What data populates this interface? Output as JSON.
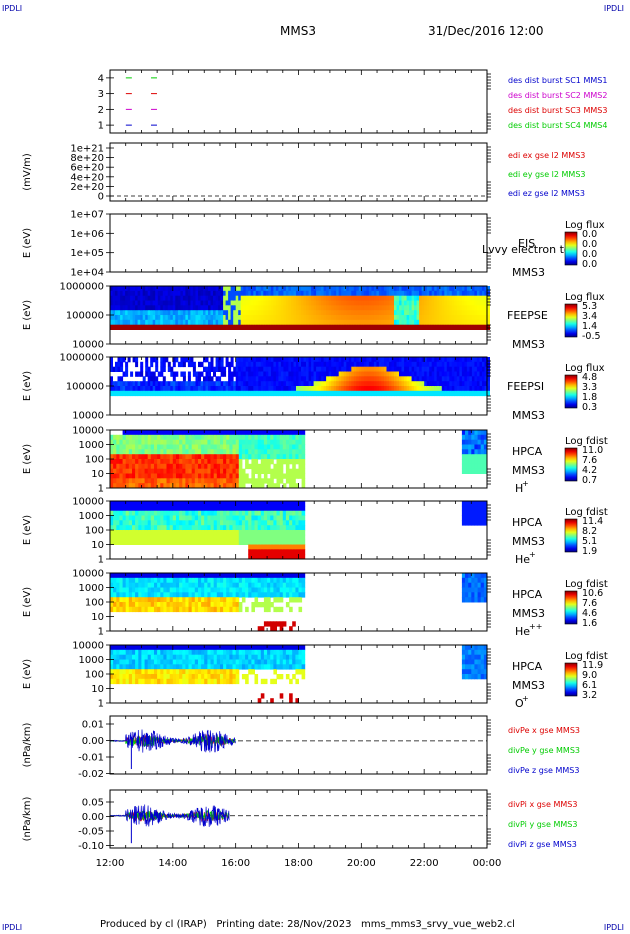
{
  "corners": {
    "top_left": "IPDLI",
    "top_right": "IPDLI",
    "bottom_left": "IPDLI",
    "bottom_right": "IPDLI"
  },
  "header": {
    "spacecraft": "MMS3",
    "date": "31/Dec/2016 12:00"
  },
  "footer": "Produced by cl (IRAP)   Printing date: 28/Nov/2023   mms_mms3_srvy_vue_web2.cl",
  "chart_data": {
    "type": "heatmap",
    "x_range_hours": [
      12,
      24
    ],
    "x_ticks": [
      "12:00",
      "14:00",
      "16:00",
      "18:00",
      "20:00",
      "22:00",
      "00:00"
    ],
    "panels": [
      {
        "id": "burst",
        "type": "scatter",
        "ylabel": "",
        "yticks": [
          "4",
          "3",
          "2",
          "1"
        ],
        "marks": [
          {
            "y": 4,
            "x": [
              12.6,
              13.4
            ],
            "color": "#00cc00"
          },
          {
            "y": 3,
            "x": [
              12.6,
              13.4
            ],
            "color": "#dd0000"
          },
          {
            "y": 2,
            "x": [
              12.6,
              13.4
            ],
            "color": "#cc00cc"
          },
          {
            "y": 1,
            "x": [
              12.6,
              13.4
            ],
            "color": "#0000cc"
          }
        ],
        "legend": [
          {
            "label": "des dist burst SC1 MMS1",
            "color": "#0000cc"
          },
          {
            "label": "des dist burst SC2 MMS2",
            "color": "#cc00cc"
          },
          {
            "label": "des dist burst SC3 MMS3",
            "color": "#dd0000"
          },
          {
            "label": "des dist burst SC4 MMS4",
            "color": "#00cc00"
          }
        ]
      },
      {
        "id": "edi",
        "type": "line",
        "ylabel": "(mV/m)",
        "yticks": [
          "1e+21",
          "8e+20",
          "6e+20",
          "4e+20",
          "2e+20",
          "0"
        ],
        "legend": [
          {
            "label": "edi ex gse l2 MMS3",
            "color": "#dd0000"
          },
          {
            "label": "edi ey gse l2 MMS3",
            "color": "#00cc00"
          },
          {
            "label": "edi ez gse l2 MMS3",
            "color": "#0000cc"
          }
        ]
      },
      {
        "id": "eis",
        "type": "heatmap",
        "ylabel": "E (eV)",
        "yticks": [
          "1e+07",
          "1e+06",
          "1e+05",
          "1e+04"
        ],
        "instrument": "EIS",
        "spacecraft": "MMS3",
        "overlay_text": "Lvvy electron to",
        "colorbar": {
          "title": "Log flux",
          "ticks": [
            "0.0",
            "0.0",
            "0.0",
            "0.0"
          ]
        }
      },
      {
        "id": "feeps_e",
        "type": "heatmap",
        "ylabel": "E (eV)",
        "yticks": [
          "1000000",
          "100000",
          "10000"
        ],
        "instrument": "FEEPSE",
        "spacecraft": "MMS3",
        "colorbar": {
          "title": "Log flux",
          "ticks": [
            "5.3",
            "3.4",
            "1.4",
            "-0.5"
          ]
        }
      },
      {
        "id": "feeps_i",
        "type": "heatmap",
        "ylabel": "E (eV)",
        "yticks": [
          "1000000",
          "100000",
          "10000"
        ],
        "instrument": "FEEPSI",
        "spacecraft": "MMS3",
        "colorbar": {
          "title": "Log flux",
          "ticks": [
            "4.8",
            "3.3",
            "1.8",
            "0.3"
          ]
        }
      },
      {
        "id": "hpca_h",
        "type": "heatmap",
        "ylabel": "E (eV)",
        "yticks": [
          "10000",
          "1000",
          "100",
          "10",
          "1"
        ],
        "instrument": "HPCA",
        "spacecraft": "MMS3",
        "species": "H",
        "species_sup": "+",
        "colorbar": {
          "title": "Log fdist",
          "ticks": [
            "11.0",
            "7.6",
            "4.2",
            "0.7"
          ]
        }
      },
      {
        "id": "hpca_he1",
        "type": "heatmap",
        "ylabel": "E (eV)",
        "yticks": [
          "10000",
          "1000",
          "100",
          "10",
          "1"
        ],
        "instrument": "HPCA",
        "spacecraft": "MMS3",
        "species": "He",
        "species_sup": "+",
        "colorbar": {
          "title": "Log fdist",
          "ticks": [
            "11.4",
            "8.2",
            "5.1",
            "1.9"
          ]
        }
      },
      {
        "id": "hpca_he2",
        "type": "heatmap",
        "ylabel": "E (eV)",
        "yticks": [
          "10000",
          "1000",
          "100",
          "10",
          "1"
        ],
        "instrument": "HPCA",
        "spacecraft": "MMS3",
        "species": "He",
        "species_sup": "++",
        "colorbar": {
          "title": "Log fdist",
          "ticks": [
            "10.6",
            "7.6",
            "4.6",
            "1.6"
          ]
        }
      },
      {
        "id": "hpca_o",
        "type": "heatmap",
        "ylabel": "E (eV)",
        "yticks": [
          "10000",
          "1000",
          "100",
          "10",
          "1"
        ],
        "instrument": "HPCA",
        "spacecraft": "MMS3",
        "species": "O",
        "species_sup": "+",
        "colorbar": {
          "title": "Log fdist",
          "ticks": [
            "11.9",
            "9.0",
            "6.1",
            "3.2"
          ]
        }
      },
      {
        "id": "divpe",
        "type": "line",
        "ylabel": "(nPa/km)",
        "yticks": [
          "0.01",
          "0.00",
          "-0.01",
          "-0.02"
        ],
        "ylim": [
          -0.02,
          0.015
        ],
        "data_end_hour": 16.0,
        "legend": [
          {
            "label": "divPe x gse MMS3",
            "color": "#dd0000"
          },
          {
            "label": "divPe y gse MMS3",
            "color": "#00cc00"
          },
          {
            "label": "divPe z gse MMS3",
            "color": "#0000cc"
          }
        ]
      },
      {
        "id": "divpi",
        "type": "line",
        "ylabel": "(nPa/km)",
        "yticks": [
          "0.05",
          "0.00",
          "-0.05",
          "-0.10"
        ],
        "ylim": [
          -0.1,
          0.08
        ],
        "data_end_hour": 15.8,
        "legend": [
          {
            "label": "divPi x gse MMS3",
            "color": "#dd0000"
          },
          {
            "label": "divPi y gse MMS3",
            "color": "#00cc00"
          },
          {
            "label": "divPi z gse MMS3",
            "color": "#0000cc"
          }
        ]
      }
    ]
  }
}
